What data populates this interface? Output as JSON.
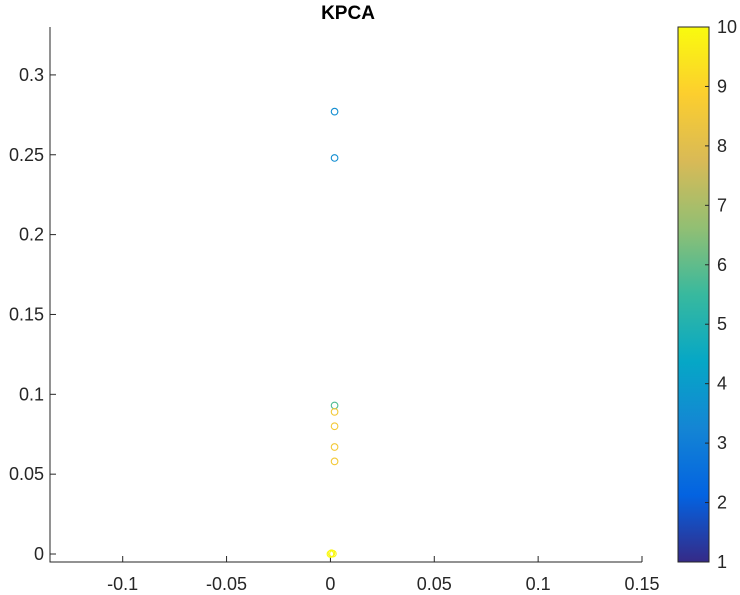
{
  "chart_data": {
    "type": "scatter",
    "title": "KPCA",
    "xlabel": "",
    "ylabel": "",
    "xlim": [
      -0.135,
      0.15
    ],
    "ylim": [
      -0.005,
      0.33
    ],
    "x_ticks": [
      -0.1,
      -0.05,
      0,
      0.05,
      0.1,
      0.15
    ],
    "x_tick_labels": [
      "-0.1",
      "-0.05",
      "0",
      "0.05",
      "0.1",
      "0.15"
    ],
    "y_ticks": [
      0,
      0.05,
      0.1,
      0.15,
      0.2,
      0.25,
      0.3
    ],
    "y_tick_labels": [
      "0",
      "0.05",
      "0.1",
      "0.15",
      "0.2",
      "0.25",
      "0.3"
    ],
    "grid": false,
    "marker": "open-circle",
    "points": [
      {
        "x": 0.002,
        "y": 0.277,
        "c": 3.5
      },
      {
        "x": 0.002,
        "y": 0.248,
        "c": 3.5
      },
      {
        "x": 0.002,
        "y": 0.093,
        "c": 5.8
      },
      {
        "x": 0.002,
        "y": 0.089,
        "c": 8.6
      },
      {
        "x": 0.002,
        "y": 0.08,
        "c": 8.6
      },
      {
        "x": 0.002,
        "y": 0.067,
        "c": 8.6
      },
      {
        "x": 0.002,
        "y": 0.058,
        "c": 8.6
      },
      {
        "x": 0.0005,
        "y": 0.0005,
        "c": 9.8
      },
      {
        "x": 0.0012,
        "y": 0.0002,
        "c": 9.9
      },
      {
        "x": 0.0,
        "y": 0.0,
        "c": 10
      }
    ],
    "colorbar": {
      "min": 1,
      "max": 10,
      "ticks": [
        1,
        2,
        3,
        4,
        5,
        6,
        7,
        8,
        9,
        10
      ],
      "tick_labels": [
        "1",
        "2",
        "3",
        "4",
        "5",
        "6",
        "7",
        "8",
        "9",
        "10"
      ],
      "colormap": "parula",
      "colormap_stops": [
        "#352a87",
        "#0363e1",
        "#1485d4",
        "#06a7c6",
        "#38b99e",
        "#92bf73",
        "#d9ba56",
        "#fcce2e",
        "#f9fb0e"
      ],
      "placement": "right"
    },
    "axis_color": "#262626",
    "background": "#ffffff"
  }
}
